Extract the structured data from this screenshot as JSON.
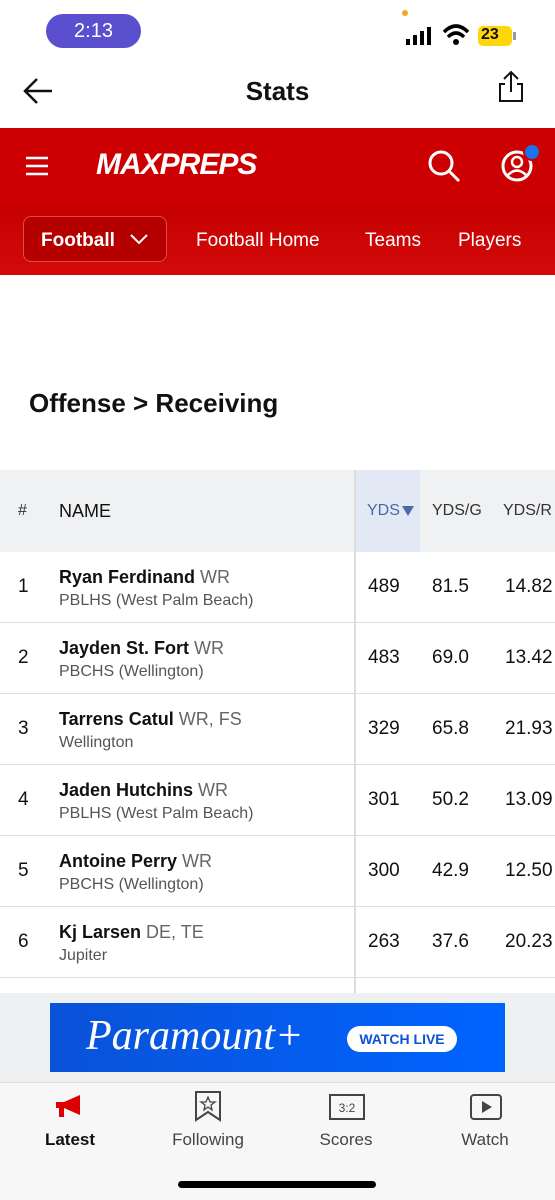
{
  "status_bar": {
    "time": "2:13",
    "battery": "23"
  },
  "header": {
    "title": "Stats"
  },
  "brand": {
    "logo": "MAXPREPS"
  },
  "nav": {
    "sport": "Football",
    "links": [
      "Football Home",
      "Teams",
      "Players"
    ]
  },
  "section": {
    "title": "Offense > Receiving"
  },
  "table": {
    "columns": [
      "#",
      "NAME",
      "YDS",
      "YDS/G",
      "YDS/R"
    ],
    "rows": [
      [
        "1",
        "Ryan Ferdinand",
        "WR",
        "PBLHS (West Palm Beach)",
        "489",
        "81.5",
        "14.82"
      ],
      [
        "2",
        "Jayden St. Fort",
        "WR",
        "PBCHS (Wellington)",
        "483",
        "69.0",
        "13.42"
      ],
      [
        "3",
        "Tarrens Catul",
        "WR, FS",
        "Wellington",
        "329",
        "65.8",
        "21.93"
      ],
      [
        "4",
        "Jaden Hutchins",
        "WR",
        "PBLHS (West Palm Beach)",
        "301",
        "50.2",
        "13.09"
      ],
      [
        "5",
        "Antoine Perry",
        "WR",
        "PBCHS (Wellington)",
        "300",
        "42.9",
        "12.50"
      ],
      [
        "6",
        "Kj Larsen",
        "DE, TE",
        "Jupiter",
        "263",
        "37.6",
        "20.23"
      ]
    ]
  },
  "ad": {
    "brand": "Paramount+",
    "cta": "WATCH LIVE"
  },
  "tab_bar": {
    "tabs": [
      "Latest",
      "Following",
      "Scores",
      "Watch"
    ]
  }
}
